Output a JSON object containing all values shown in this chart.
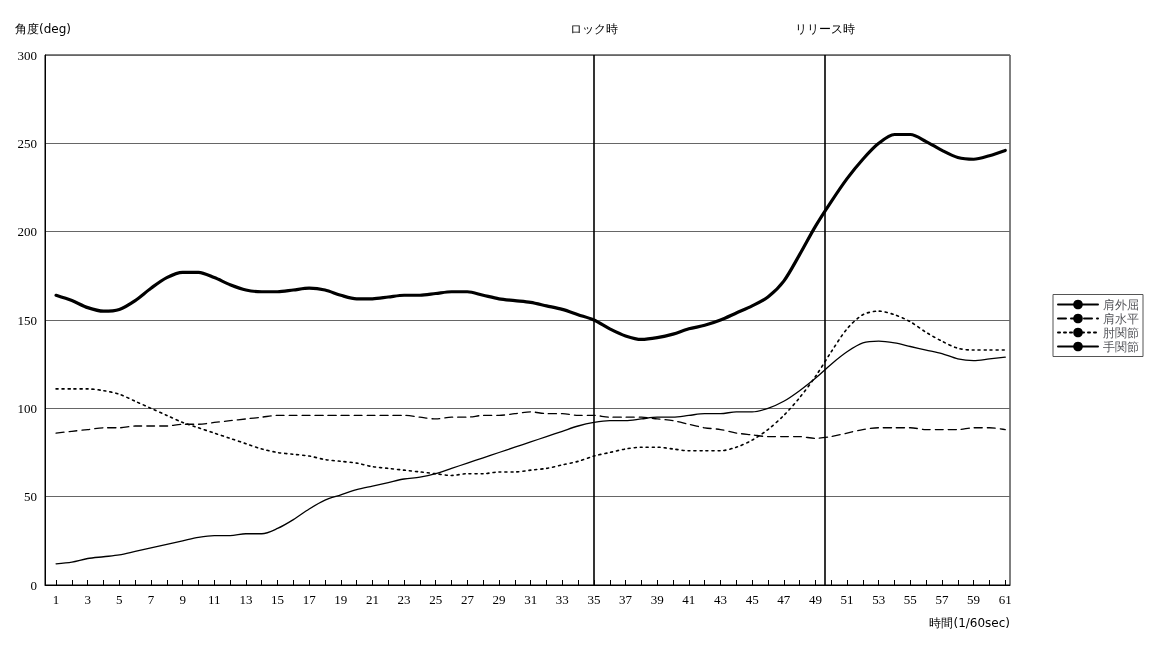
{
  "chart_data": {
    "type": "line",
    "ylabel": "角度(deg)",
    "xlabel": "時間(1/60sec)",
    "x": [
      1,
      2,
      3,
      4,
      5,
      6,
      7,
      8,
      9,
      10,
      11,
      12,
      13,
      14,
      15,
      16,
      17,
      18,
      19,
      20,
      21,
      22,
      23,
      24,
      25,
      26,
      27,
      28,
      29,
      30,
      31,
      32,
      33,
      34,
      35,
      36,
      37,
      38,
      39,
      40,
      41,
      42,
      43,
      44,
      45,
      46,
      47,
      48,
      49,
      50,
      51,
      52,
      53,
      54,
      55,
      56,
      57,
      58,
      59,
      60,
      61
    ],
    "xlim": [
      0.3,
      61.3
    ],
    "xticks": [
      1,
      {
        "value": 2,
        "label": null
      },
      3,
      {
        "value": 4,
        "label": null
      },
      5,
      {
        "value": 6,
        "label": null
      },
      7,
      {
        "value": 8,
        "label": null
      },
      9,
      {
        "value": 10,
        "label": null
      },
      11,
      {
        "value": 12,
        "label": null
      },
      13,
      {
        "value": 14,
        "label": null
      },
      15,
      {
        "value": 16,
        "label": null
      },
      17,
      {
        "value": 18,
        "label": null
      },
      19,
      {
        "value": 20,
        "label": null
      },
      21,
      {
        "value": 22,
        "label": null
      },
      23,
      {
        "value": 24,
        "label": null
      },
      25,
      {
        "value": 26,
        "label": null
      },
      27,
      {
        "value": 28,
        "label": null
      },
      29,
      {
        "value": 30,
        "label": null
      },
      31,
      {
        "value": 32,
        "label": null
      },
      33,
      {
        "value": 34,
        "label": null
      },
      35,
      {
        "value": 36,
        "label": null
      },
      37,
      {
        "value": 38,
        "label": null
      },
      39,
      {
        "value": 40,
        "label": null
      },
      41,
      {
        "value": 42,
        "label": null
      },
      43,
      {
        "value": 44,
        "label": null
      },
      45,
      {
        "value": 46,
        "label": null
      },
      47,
      {
        "value": 48,
        "label": null
      },
      49,
      {
        "value": 50,
        "label": null
      },
      51,
      {
        "value": 52,
        "label": null
      },
      53,
      {
        "value": 54,
        "label": null
      },
      55,
      {
        "value": 56,
        "label": null
      },
      57,
      {
        "value": 58,
        "label": null
      },
      59,
      {
        "value": 60,
        "label": null
      },
      61
    ],
    "ylim": [
      0,
      300
    ],
    "yticks": [
      0,
      50,
      100,
      150,
      200,
      250,
      300
    ],
    "grid": "y",
    "legend": "right",
    "marker": "none",
    "series": [
      {
        "name": "肩外屈",
        "color": "#000000",
        "line_style": "solid",
        "values": [
          12,
          13,
          15,
          16,
          17,
          19,
          21,
          23,
          25,
          27,
          28,
          28,
          29,
          29,
          32,
          37,
          43,
          48,
          51,
          54,
          56,
          58,
          60,
          61,
          63,
          66,
          69,
          72,
          75,
          78,
          81,
          84,
          87,
          90,
          92,
          93,
          93,
          94,
          95,
          95,
          96,
          97,
          97,
          98,
          98,
          100,
          104,
          110,
          117,
          125,
          132,
          137,
          138,
          137,
          135,
          133,
          131,
          128,
          127,
          128,
          129
        ]
      },
      {
        "name": "肩水平",
        "color": "#000000",
        "line_style": "dashed",
        "values": [
          86,
          87,
          88,
          89,
          89,
          90,
          90,
          90,
          91,
          91,
          92,
          93,
          94,
          95,
          96,
          96,
          96,
          96,
          96,
          96,
          96,
          96,
          96,
          95,
          94,
          95,
          95,
          96,
          96,
          97,
          98,
          97,
          97,
          96,
          96,
          95,
          95,
          95,
          94,
          93,
          91,
          89,
          88,
          86,
          85,
          84,
          84,
          84,
          83,
          84,
          86,
          88,
          89,
          89,
          89,
          88,
          88,
          88,
          89,
          89,
          88
        ]
      },
      {
        "name": "肘関節",
        "color": "#000000",
        "line_style": "dotted",
        "values": [
          111,
          111,
          111,
          110,
          108,
          104,
          100,
          96,
          92,
          89,
          86,
          83,
          80,
          77,
          75,
          74,
          73,
          71,
          70,
          69,
          67,
          66,
          65,
          64,
          63,
          62,
          63,
          63,
          64,
          64,
          65,
          66,
          68,
          70,
          73,
          75,
          77,
          78,
          78,
          77,
          76,
          76,
          76,
          78,
          82,
          88,
          96,
          106,
          118,
          132,
          145,
          153,
          155,
          153,
          149,
          143,
          138,
          134,
          133,
          133,
          133
        ]
      },
      {
        "name": "手関節",
        "color": "#000000",
        "line_style": "solid",
        "values": [
          164,
          161,
          157,
          155,
          156,
          161,
          168,
          174,
          177,
          177,
          174,
          170,
          167,
          166,
          166,
          167,
          168,
          167,
          164,
          162,
          162,
          163,
          164,
          164,
          165,
          166,
          166,
          164,
          162,
          161,
          160,
          158,
          156,
          153,
          150,
          145,
          141,
          139,
          140,
          142,
          145,
          147,
          150,
          154,
          158,
          163,
          172,
          187,
          203,
          217,
          230,
          241,
          250,
          255,
          255,
          251,
          246,
          242,
          241,
          243,
          246
        ]
      }
    ],
    "ref_lines": [
      {
        "axis": "x",
        "value": 35,
        "label": "ロック時",
        "color": "#000000"
      },
      {
        "axis": "x",
        "value": 49.6,
        "label": "リリース時",
        "color": "#000000"
      }
    ]
  }
}
